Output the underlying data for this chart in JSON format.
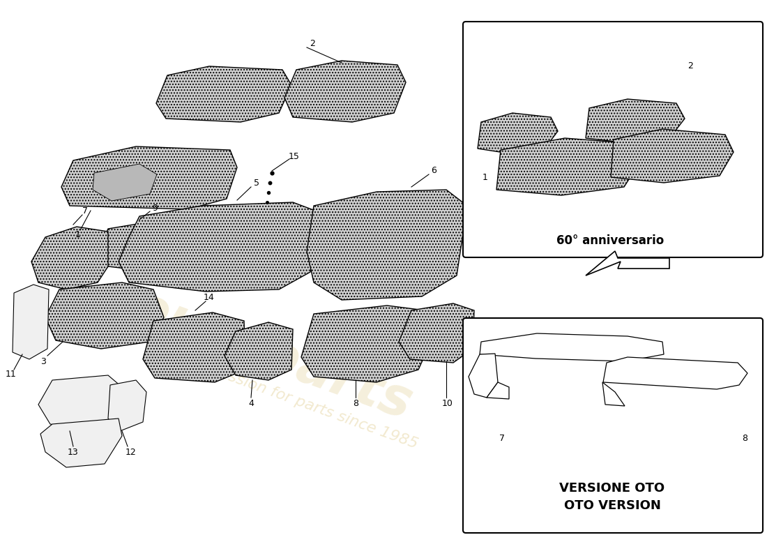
{
  "bg_color": "#ffffff",
  "watermark_color": "#d4b860",
  "box1_label": "60° anniversario",
  "box2_label_line1": "VERSIONE OTO",
  "box2_label_line2": "OTO VERSION",
  "line_color": "#000000",
  "carpet_color": "#d0d0d0",
  "carpet_hatch": "....",
  "trim_color": "#f0f0f0"
}
